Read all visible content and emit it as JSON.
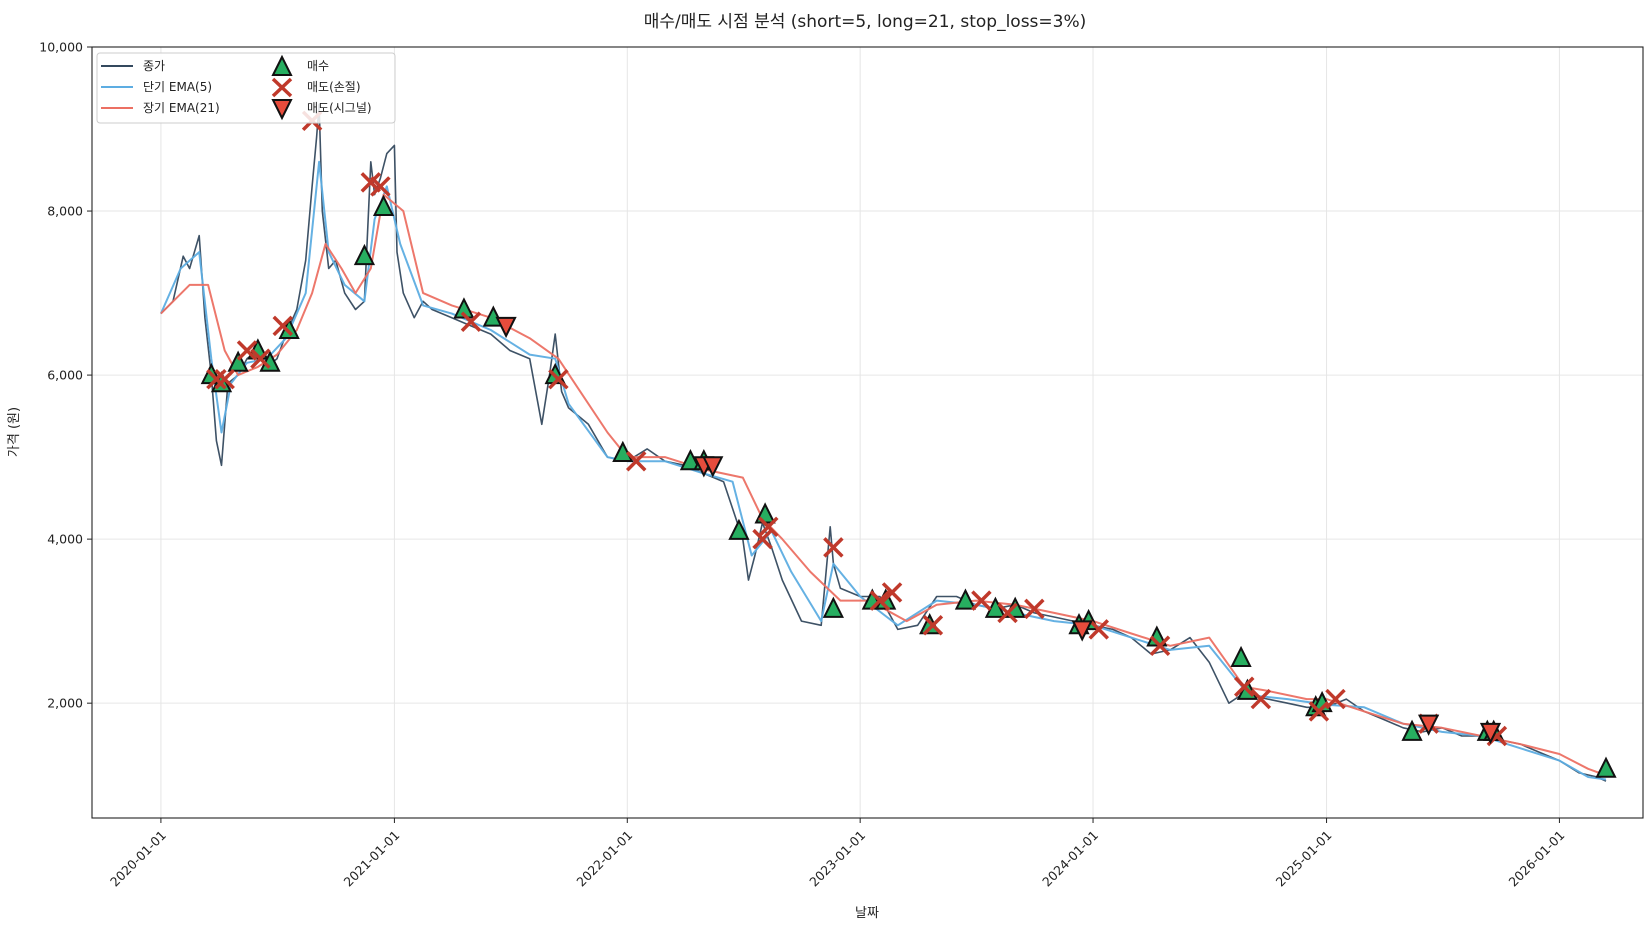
{
  "chart_data": {
    "type": "line",
    "title": "매수/매도 시점 분석 (short=5, long=21, stop_loss=3%)",
    "xlabel": "날짜",
    "ylabel": "가격 (원)",
    "xlim": [
      "2019-09-15",
      "2026-05-12"
    ],
    "ylim": [
      600,
      10000
    ],
    "grid": true,
    "legend_position": "top-left",
    "x_ticks": [
      "2020-01-01",
      "2021-01-01",
      "2022-01-01",
      "2023-01-01",
      "2024-01-01",
      "2025-01-01",
      "2026-01-01"
    ],
    "y_ticks": [
      2000,
      4000,
      6000,
      8000,
      10000
    ],
    "y_tick_labels": [
      "2,000",
      "4,000",
      "6,000",
      "8,000",
      "10,000"
    ],
    "colors": {
      "close": "#34495e",
      "short": "#5dade2",
      "long": "#ec7063",
      "buy": "#27ae60",
      "sell_stop": "#c0392b",
      "sell_signal": "#e74c3c"
    },
    "series": [
      {
        "name": "종가",
        "x": [
          "2020-01-01",
          "2020-01-20",
          "2020-02-05",
          "2020-02-15",
          "2020-03-01",
          "2020-03-10",
          "2020-03-20",
          "2020-03-28",
          "2020-04-05",
          "2020-04-15",
          "2020-05-01",
          "2020-05-15",
          "2020-06-01",
          "2020-06-15",
          "2020-07-01",
          "2020-07-15",
          "2020-08-01",
          "2020-08-15",
          "2020-08-25",
          "2020-09-01",
          "2020-09-05",
          "2020-09-10",
          "2020-09-20",
          "2020-10-01",
          "2020-10-15",
          "2020-11-01",
          "2020-11-15",
          "2020-11-25",
          "2020-12-01",
          "2020-12-10",
          "2020-12-20",
          "2021-01-01",
          "2021-01-05",
          "2021-01-15",
          "2021-02-01",
          "2021-02-15",
          "2021-03-01",
          "2021-04-01",
          "2021-05-01",
          "2021-06-01",
          "2021-07-01",
          "2021-08-01",
          "2021-08-20",
          "2021-09-01",
          "2021-09-10",
          "2021-09-20",
          "2021-10-01",
          "2021-11-01",
          "2021-12-01",
          "2022-01-01",
          "2022-02-01",
          "2022-03-01",
          "2022-04-01",
          "2022-05-01",
          "2022-06-01",
          "2022-07-01",
          "2022-07-10",
          "2022-07-20",
          "2022-08-01",
          "2022-08-15",
          "2022-09-01",
          "2022-10-01",
          "2022-11-01",
          "2022-11-15",
          "2022-11-20",
          "2022-12-01",
          "2023-01-01",
          "2023-02-01",
          "2023-03-01",
          "2023-04-01",
          "2023-05-01",
          "2023-06-01",
          "2023-07-01",
          "2023-08-01",
          "2023-09-01",
          "2023-10-01",
          "2023-11-01",
          "2023-12-01",
          "2024-01-01",
          "2024-02-01",
          "2024-03-01",
          "2024-04-01",
          "2024-05-01",
          "2024-06-01",
          "2024-07-01",
          "2024-08-01",
          "2024-08-20",
          "2024-09-01",
          "2024-10-01",
          "2024-11-01",
          "2024-12-01",
          "2025-01-01",
          "2025-02-01",
          "2025-03-01",
          "2025-04-01",
          "2025-05-01",
          "2025-06-01",
          "2025-07-01",
          "2025-08-01",
          "2025-09-01",
          "2025-10-01",
          "2025-11-01",
          "2025-12-01",
          "2026-01-01",
          "2026-02-01",
          "2026-03-01",
          "2026-03-15"
        ],
        "y": [
          6750,
          6900,
          7450,
          7300,
          7700,
          6700,
          6000,
          5200,
          4900,
          5900,
          6000,
          6200,
          6300,
          6100,
          6200,
          6500,
          6800,
          7400,
          8300,
          8900,
          9300,
          8000,
          7300,
          7400,
          7000,
          6800,
          6900,
          8600,
          8200,
          8400,
          8700,
          8800,
          7500,
          7000,
          6700,
          6900,
          6800,
          6700,
          6600,
          6500,
          6300,
          6200,
          5400,
          6000,
          6500,
          5800,
          5600,
          5400,
          5000,
          4950,
          5100,
          4950,
          4900,
          4800,
          4700,
          4000,
          3500,
          3800,
          4200,
          3900,
          3500,
          3000,
          2950,
          4150,
          3700,
          3400,
          3300,
          3300,
          2900,
          2950,
          3300,
          3300,
          3200,
          3150,
          3200,
          3100,
          3050,
          3000,
          2950,
          2900,
          2800,
          2600,
          2650,
          2800,
          2500,
          2000,
          2100,
          2100,
          2050,
          2000,
          1950,
          1950,
          2050,
          1900,
          1800,
          1700,
          1650,
          1700,
          1600,
          1600,
          1550,
          1500,
          1400,
          1300,
          1150,
          1100,
          1050
        ]
      },
      {
        "name": "단기 EMA(5)",
        "x": [
          "2020-01-01",
          "2020-02-01",
          "2020-03-01",
          "2020-03-20",
          "2020-04-05",
          "2020-04-20",
          "2020-05-15",
          "2020-06-15",
          "2020-07-15",
          "2020-08-15",
          "2020-09-05",
          "2020-09-20",
          "2020-10-15",
          "2020-11-15",
          "2020-12-01",
          "2020-12-20",
          "2021-01-10",
          "2021-02-15",
          "2021-04-01",
          "2021-06-01",
          "2021-08-01",
          "2021-09-10",
          "2021-10-01",
          "2021-12-01",
          "2022-01-01",
          "2022-03-01",
          "2022-05-01",
          "2022-06-15",
          "2022-07-15",
          "2022-08-15",
          "2022-09-15",
          "2022-11-01",
          "2022-11-20",
          "2023-01-01",
          "2023-03-01",
          "2023-05-01",
          "2023-07-01",
          "2023-09-01",
          "2023-11-01",
          "2024-01-01",
          "2024-03-01",
          "2024-05-01",
          "2024-07-01",
          "2024-09-01",
          "2024-11-01",
          "2025-01-01",
          "2025-03-01",
          "2025-05-01",
          "2025-07-01",
          "2025-09-01",
          "2025-11-01",
          "2026-01-01",
          "2026-02-15",
          "2026-03-15"
        ],
        "y": [
          6750,
          7300,
          7500,
          6200,
          5300,
          5900,
          6150,
          6200,
          6450,
          7000,
          8600,
          7500,
          7100,
          6900,
          7900,
          8300,
          7600,
          6850,
          6750,
          6550,
          6250,
          6200,
          5650,
          5000,
          4950,
          4950,
          4800,
          4700,
          3800,
          4100,
          3600,
          3000,
          3700,
          3300,
          2950,
          3250,
          3200,
          3100,
          3000,
          2950,
          2800,
          2650,
          2700,
          2100,
          2050,
          1980,
          1950,
          1750,
          1650,
          1600,
          1450,
          1300,
          1100,
          1070
        ]
      },
      {
        "name": "장기 EMA(21)",
        "x": [
          "2020-01-01",
          "2020-02-15",
          "2020-03-15",
          "2020-04-10",
          "2020-05-01",
          "2020-06-01",
          "2020-07-01",
          "2020-08-01",
          "2020-08-25",
          "2020-09-15",
          "2020-10-10",
          "2020-11-01",
          "2020-11-25",
          "2020-12-15",
          "2021-01-15",
          "2021-02-15",
          "2021-04-01",
          "2021-06-01",
          "2021-08-01",
          "2021-09-15",
          "2021-10-15",
          "2021-12-01",
          "2022-01-01",
          "2022-03-01",
          "2022-05-01",
          "2022-07-01",
          "2022-08-01",
          "2022-09-01",
          "2022-10-15",
          "2022-12-01",
          "2023-01-15",
          "2023-03-15",
          "2023-05-01",
          "2023-07-01",
          "2023-09-01",
          "2023-11-01",
          "2024-01-01",
          "2024-03-01",
          "2024-05-01",
          "2024-07-01",
          "2024-08-25",
          "2024-10-01",
          "2024-12-01",
          "2025-01-01",
          "2025-03-01",
          "2025-05-01",
          "2025-07-01",
          "2025-09-01",
          "2025-11-01",
          "2026-01-01",
          "2026-02-15",
          "2026-03-15"
        ],
        "y": [
          6750,
          7100,
          7100,
          6300,
          6000,
          6100,
          6250,
          6550,
          7000,
          7600,
          7300,
          7000,
          7300,
          8200,
          8000,
          7000,
          6850,
          6700,
          6450,
          6200,
          5850,
          5300,
          5000,
          5000,
          4850,
          4750,
          4250,
          4000,
          3600,
          3250,
          3250,
          3000,
          3200,
          3250,
          3200,
          3100,
          3000,
          2850,
          2700,
          2800,
          2200,
          2150,
          2050,
          2050,
          1900,
          1750,
          1700,
          1600,
          1500,
          1380,
          1200,
          1120
        ]
      }
    ],
    "markers": [
      {
        "name": "매수",
        "shape": "triangle-up",
        "x": [
          "2020-03-20",
          "2020-04-05",
          "2020-05-01",
          "2020-06-01",
          "2020-06-20",
          "2020-07-20",
          "2020-11-15",
          "2020-12-15",
          "2021-04-20",
          "2021-06-05",
          "2021-09-10",
          "2021-12-25",
          "2022-04-10",
          "2022-05-01",
          "2022-06-25",
          "2022-08-05",
          "2022-11-20",
          "2023-01-20",
          "2023-02-10",
          "2023-04-20",
          "2023-06-15",
          "2023-08-01",
          "2023-09-01",
          "2023-12-10",
          "2023-12-25",
          "2024-04-10",
          "2024-08-20",
          "2024-08-30",
          "2024-12-15",
          "2024-12-25",
          "2025-05-15",
          "2025-09-10",
          "2025-09-20",
          "2026-03-15"
        ],
        "y": [
          6000,
          5900,
          6150,
          6300,
          6150,
          6550,
          7450,
          8050,
          6800,
          6700,
          6000,
          5050,
          4950,
          4950,
          4100,
          4300,
          3150,
          3250,
          3250,
          2950,
          3250,
          3150,
          3150,
          2950,
          3000,
          2800,
          2550,
          2150,
          1950,
          2000,
          1650,
          1650,
          1650,
          1200
        ]
      },
      {
        "name": "매도(손절)",
        "shape": "x",
        "x": [
          "2020-03-28",
          "2020-04-10",
          "2020-05-15",
          "2020-06-05",
          "2020-07-10",
          "2020-08-25",
          "2020-11-25",
          "2020-12-10",
          "2021-05-01",
          "2021-09-15",
          "2022-01-15",
          "2022-08-01",
          "2022-08-10",
          "2022-11-20",
          "2023-02-01",
          "2023-02-20",
          "2023-04-25",
          "2023-07-10",
          "2023-08-20",
          "2023-10-01",
          "2024-01-10",
          "2024-04-15",
          "2024-08-25",
          "2024-09-20",
          "2024-12-20",
          "2025-01-15",
          "2025-06-10",
          "2025-09-25"
        ],
        "y": [
          5950,
          5950,
          6300,
          6200,
          6600,
          9100,
          8350,
          8300,
          6650,
          5950,
          4950,
          4000,
          4150,
          3900,
          3250,
          3350,
          2950,
          3250,
          3100,
          3150,
          2900,
          2700,
          2200,
          2050,
          1900,
          2050,
          1750,
          1600
        ]
      },
      {
        "name": "매도(시그널)",
        "shape": "triangle-down",
        "x": [
          "2022-05-01",
          "2022-05-15",
          "2021-06-25",
          "2023-12-15",
          "2025-06-10",
          "2025-09-15"
        ],
        "y": [
          4900,
          4900,
          6600,
          2900,
          1750,
          1650
        ]
      }
    ],
    "legend": {
      "col1": [
        "종가",
        "단기 EMA(5)",
        "장기 EMA(21)"
      ],
      "col2": [
        "매수",
        "매도(손절)",
        "매도(시그널)"
      ]
    }
  }
}
